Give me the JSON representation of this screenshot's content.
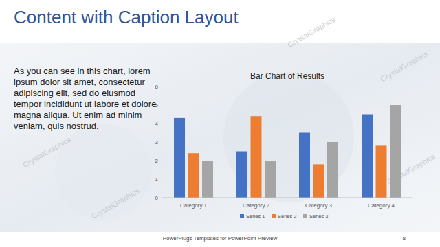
{
  "slide": {
    "title": "Content with Caption Layout",
    "caption": "As you can see in this chart, lorem ipsum dolor sit amet, consectetur adipiscing elit, sed do eiusmod tempor incididunt ut labore et dolore magna aliqua. Ut enim ad minim veniam, quis nostrud.",
    "footer": "PowerPlugs Templates for PowerPoint Preview",
    "page_number": 8,
    "watermark": "CrystalGraphics"
  },
  "chart_data": {
    "type": "bar",
    "title": "Bar Chart of Results",
    "categories": [
      "Category 1",
      "Category 2",
      "Category 3",
      "Category 4"
    ],
    "series": [
      {
        "name": "Series 1",
        "color": "#4472c4",
        "values": [
          4.3,
          2.5,
          3.5,
          4.5
        ]
      },
      {
        "name": "Series 2",
        "color": "#ed7d31",
        "values": [
          2.4,
          4.4,
          1.8,
          2.8
        ]
      },
      {
        "name": "Series 3",
        "color": "#a5a5a5",
        "values": [
          2,
          2,
          3,
          5
        ]
      }
    ],
    "ylim": [
      0,
      6
    ],
    "yticks": [
      0,
      1,
      2,
      3,
      4,
      5,
      6
    ],
    "grid": false,
    "legend": "bottom"
  }
}
